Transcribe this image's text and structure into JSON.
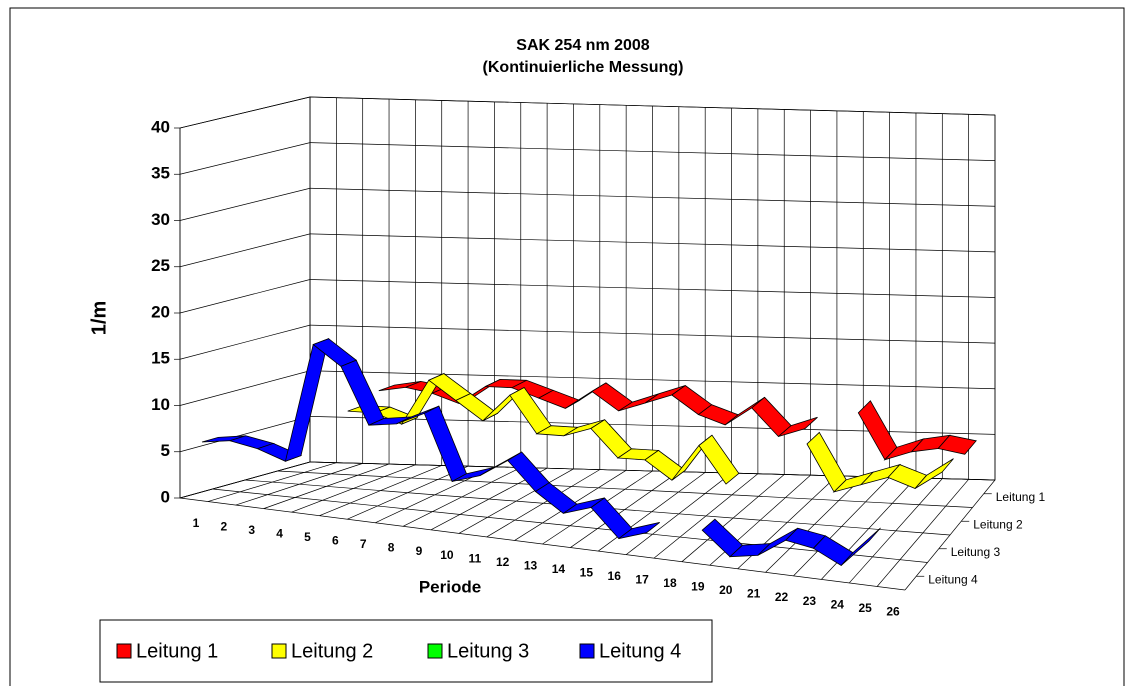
{
  "chart_data": {
    "type": "ribbon3d",
    "title": "SAK 254 nm 2008",
    "subtitle": "(Kontinuierliche Messung)",
    "y_label": "1/m",
    "x_label": "Periode",
    "categories": [
      "1",
      "2",
      "3",
      "4",
      "5",
      "6",
      "7",
      "8",
      "9",
      "10",
      "11",
      "12",
      "13",
      "14",
      "15",
      "16",
      "17",
      "18",
      "19",
      "20",
      "21",
      "22",
      "23",
      "24",
      "25",
      "26"
    ],
    "series": [
      {
        "name": "Leitung 1",
        "color": "#ff0000",
        "values": [
          null,
          null,
          null,
          9,
          9.5,
          9,
          8,
          10,
          10,
          9,
          8,
          10,
          8,
          9,
          10,
          8,
          7,
          9,
          6,
          7,
          null,
          9,
          4,
          5,
          5.5,
          5
        ]
      },
      {
        "name": "Leitung 2",
        "color": "#ffff00",
        "values": [
          null,
          null,
          null,
          8,
          8,
          7,
          12,
          10,
          8,
          11,
          7,
          7,
          8,
          5,
          5,
          3,
          7,
          3,
          null,
          null,
          8,
          3,
          4,
          5,
          4,
          6
        ]
      },
      {
        "name": "Leitung 3",
        "color": "#00ff00",
        "values": [
          null,
          null,
          null,
          null,
          null,
          null,
          null,
          null,
          null,
          null,
          null,
          null,
          null,
          null,
          null,
          null,
          null,
          null,
          null,
          null,
          null,
          null,
          null,
          null,
          null,
          null
        ]
      },
      {
        "name": "Leitung 4",
        "color": "#0000ff",
        "values": [
          6,
          6.5,
          6,
          5,
          18,
          16,
          10,
          10.5,
          12,
          5,
          6,
          8,
          5,
          3,
          4,
          1,
          2,
          null,
          3,
          0.5,
          1,
          3,
          2.5,
          1,
          4,
          null
        ]
      }
    ],
    "ylim": [
      0,
      40
    ],
    "yticks": [
      0,
      5,
      10,
      15,
      20,
      25,
      30,
      35,
      40
    ],
    "grid": true
  }
}
